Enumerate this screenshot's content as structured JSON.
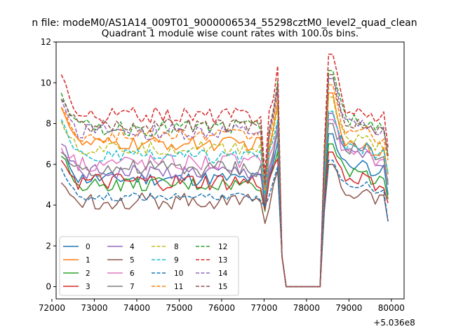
{
  "chart_data": {
    "type": "line",
    "suptitle": "n file: modeM0/AS1A14_009T01_9000006534_55298cztM0_level2_quad_clean",
    "title": "Quadrant 1 module wise count rates with 100.0s bins.",
    "xlabel": "",
    "ylabel": "",
    "x_offset_label": "+5.036e8",
    "xlim": [
      72100,
      80300
    ],
    "ylim": [
      -0.6,
      12.0
    ],
    "xticks": [
      72000,
      73000,
      74000,
      75000,
      76000,
      77000,
      78000,
      79000,
      80000
    ],
    "xtick_labels": [
      "72000",
      "73000",
      "74000",
      "75000",
      "76000",
      "77000",
      "78000",
      "79000",
      "80000"
    ],
    "yticks": [
      0,
      2,
      4,
      6,
      8,
      10,
      12
    ],
    "ytick_labels": [
      "0",
      "2",
      "4",
      "6",
      "8",
      "10",
      "12"
    ],
    "legend_position": "lower-left",
    "legend_columns": 4,
    "grid": false,
    "x": {
      "start": 72221,
      "step": 100,
      "count": 78
    },
    "series": [
      {
        "name": "0",
        "color": "#1f77b4",
        "dash": "solid",
        "level": 5.3,
        "amp": 0.35,
        "start": 6.6,
        "dip": 3.9,
        "post": 6.0,
        "end": 4.5,
        "peak": 7.5
      },
      {
        "name": "1",
        "color": "#ff7f0e",
        "dash": "solid",
        "level": 7.0,
        "amp": 0.35,
        "start": 8.8,
        "dip": 4.5,
        "post": 7.0,
        "end": 5.5,
        "peak": 9.5
      },
      {
        "name": "2",
        "color": "#2ca02c",
        "dash": "solid",
        "level": 5.0,
        "amp": 0.35,
        "start": 6.4,
        "dip": 3.7,
        "post": 5.6,
        "end": 4.3,
        "peak": 7.0
      },
      {
        "name": "3",
        "color": "#d62728",
        "dash": "solid",
        "level": 5.1,
        "amp": 0.45,
        "start": 6.2,
        "dip": 3.8,
        "post": 5.3,
        "end": 4.1,
        "peak": 6.6
      },
      {
        "name": "4",
        "color": "#9467bd",
        "dash": "solid",
        "level": 5.6,
        "amp": 0.4,
        "start": 7.0,
        "dip": 4.3,
        "post": 6.5,
        "end": 5.2,
        "peak": 8.5
      },
      {
        "name": "5",
        "color": "#8c564b",
        "dash": "solid",
        "level": 4.2,
        "amp": 0.4,
        "start": 5.1,
        "dip": 3.1,
        "post": 4.6,
        "end": 3.2,
        "peak": 6.0
      },
      {
        "name": "6",
        "color": "#e377c2",
        "dash": "solid",
        "level": 6.1,
        "amp": 0.45,
        "start": 6.8,
        "dip": 4.2,
        "post": 6.5,
        "end": 5.0,
        "peak": 8.2
      },
      {
        "name": "7",
        "color": "#7f7f7f",
        "dash": "solid",
        "level": 5.8,
        "amp": 0.45,
        "start": 6.6,
        "dip": 4.1,
        "post": 6.8,
        "end": 5.0,
        "peak": 8.0
      },
      {
        "name": "8",
        "color": "#bcbd22",
        "dash": "dash",
        "level": 6.8,
        "amp": 0.35,
        "start": 8.1,
        "dip": 4.6,
        "post": 7.2,
        "end": 5.6,
        "peak": 9.3
      },
      {
        "name": "9",
        "color": "#17becf",
        "dash": "dash",
        "level": 6.4,
        "amp": 0.35,
        "start": 8.2,
        "dip": 4.5,
        "post": 6.8,
        "end": 5.5,
        "peak": 8.6
      },
      {
        "name": "10",
        "color": "#1f77b4",
        "dash": "dash",
        "level": 4.4,
        "amp": 0.2,
        "start": 5.8,
        "dip": 3.9,
        "post": 5.0,
        "end": 3.2,
        "peak": 6.2
      },
      {
        "name": "11",
        "color": "#ff7f0e",
        "dash": "dash",
        "level": 7.4,
        "amp": 0.35,
        "start": 8.8,
        "dip": 4.8,
        "post": 7.6,
        "end": 6.2,
        "peak": 9.9
      },
      {
        "name": "12",
        "color": "#2ca02c",
        "dash": "dash",
        "level": 7.8,
        "amp": 0.4,
        "start": 9.5,
        "dip": 5.0,
        "post": 8.2,
        "end": 6.5,
        "peak": 10.6
      },
      {
        "name": "13",
        "color": "#d62728",
        "dash": "dash",
        "level": 8.4,
        "amp": 0.4,
        "start": 10.4,
        "dip": 5.5,
        "post": 8.6,
        "end": 6.8,
        "peak": 11.4
      },
      {
        "name": "14",
        "color": "#9467bd",
        "dash": "dash",
        "level": 7.6,
        "amp": 0.4,
        "start": 9.2,
        "dip": 5.1,
        "post": 8.0,
        "end": 6.4,
        "peak": 10.2
      },
      {
        "name": "15",
        "color": "#8c564b",
        "dash": "dash",
        "level": 7.9,
        "amp": 0.35,
        "start": 9.2,
        "dip": 5.0,
        "post": 8.0,
        "end": 6.4,
        "peak": 10.4
      }
    ]
  }
}
